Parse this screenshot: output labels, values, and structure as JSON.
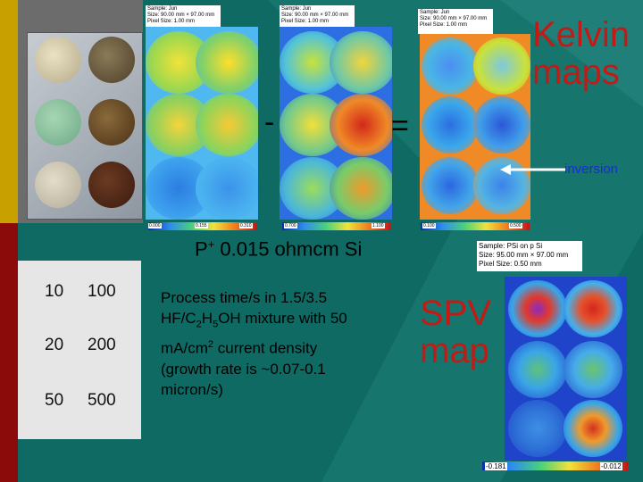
{
  "kelvin_title": [
    "Kelvin",
    "maps"
  ],
  "operators": {
    "minus": "-",
    "equals": "="
  },
  "inversion_label": "inversion",
  "headers": {
    "map1": [
      "Sample: Jun",
      "Size: 90.00 mm × 97.00 mm",
      "Pixel Size: 1.00 mm"
    ],
    "map2": [
      "Sample: Jun",
      "Size: 90.00 mm × 97.00 mm",
      "Pixel Size: 1.00 mm"
    ],
    "map3": [
      "Sample: Jun",
      "Size: 90.00 mm × 97.00 mm",
      "Pixel Size: 1.00 mm"
    ],
    "spv": [
      "Sample: PSi on p Si",
      "Size: 95.00 mm × 97.00 mm",
      "Pixel Size: 0.50 mm"
    ]
  },
  "scales": {
    "map1": [
      "0.000",
      "0.155",
      "0.310"
    ],
    "map2": [
      "0.700",
      "1.100"
    ],
    "map3": [
      "0.100",
      "0.500"
    ],
    "spv": [
      "-0.181",
      "-0.012"
    ]
  },
  "subtitle": {
    "prefix": "P",
    "sup": "+",
    "rest": " 0.015 ohmcm Si"
  },
  "table": [
    [
      "10",
      "100"
    ],
    [
      "20",
      "200"
    ],
    [
      "50",
      "500"
    ]
  ],
  "process": {
    "l1": "Process time/s in 1.5/3.5",
    "l2a": "HF/C",
    "l2b": "2",
    "l2c": "H",
    "l2d": "5",
    "l2e": "OH mixture with 50",
    "l3a": "mA/cm",
    "l3b": "2",
    "l3c": " current density",
    "l4": "(growth rate is ~0.07-0.1",
    "l5": "micron/s)"
  },
  "spv_title": [
    "SPV",
    "map"
  ],
  "colors": {
    "background": "#0e6a63",
    "accent_red": "#c41a16",
    "bar_gold": "#c8a000",
    "bar_red": "#8b0a0a"
  }
}
